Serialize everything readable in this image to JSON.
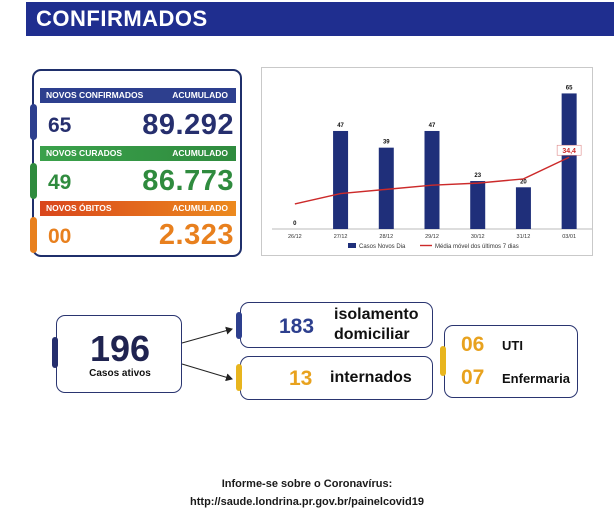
{
  "header": {
    "title": "CONFIRMADOS"
  },
  "stats": {
    "confirmed": {
      "label": "NOVOS CONFIRMADOS",
      "acc_label": "ACUMULADO",
      "new": "65",
      "total": "89.292"
    },
    "recovered": {
      "label": "NOVOS CURADOS",
      "acc_label": "ACUMULADO",
      "new": "49",
      "total": "86.773"
    },
    "deaths": {
      "label": "NOVOS ÓBITOS",
      "acc_label": "ACUMULADO",
      "new": "00",
      "total": "2.323"
    }
  },
  "chart_data": {
    "type": "bar",
    "categories": [
      "26/12",
      "27/12",
      "28/12",
      "29/12",
      "30/12",
      "31/12",
      "03/01"
    ],
    "series": [
      {
        "name": "Casos Novos Dia",
        "type": "bar",
        "values": [
          0,
          47,
          39,
          47,
          23,
          20,
          65
        ]
      },
      {
        "name": "Média móvel dos últimos 7 dias",
        "type": "line",
        "values": [
          12,
          17,
          19,
          21,
          22,
          24,
          34.4
        ]
      }
    ],
    "data_labels": [
      "0",
      "47",
      "39",
      "47",
      "23",
      "20",
      "65"
    ],
    "highlight_label": "34,4",
    "ylim": [
      0,
      70
    ],
    "colors": {
      "bar": "#1f2f7a",
      "line": "#cc2a2a"
    }
  },
  "active": {
    "total": "196",
    "total_label": "Casos ativos",
    "home": {
      "value": "183",
      "label_line1": "isolamento",
      "label_line2": "domiciliar"
    },
    "hospital": {
      "value": "13",
      "label": "internados"
    },
    "icu": {
      "value": "06",
      "label": "UTI"
    },
    "ward": {
      "value": "07",
      "label": "Enfermaria"
    }
  },
  "footer": {
    "line1": "Informe-se sobre o Coronavírus:",
    "line2": "http://saude.londrina.pr.gov.br/painelcovid19"
  }
}
